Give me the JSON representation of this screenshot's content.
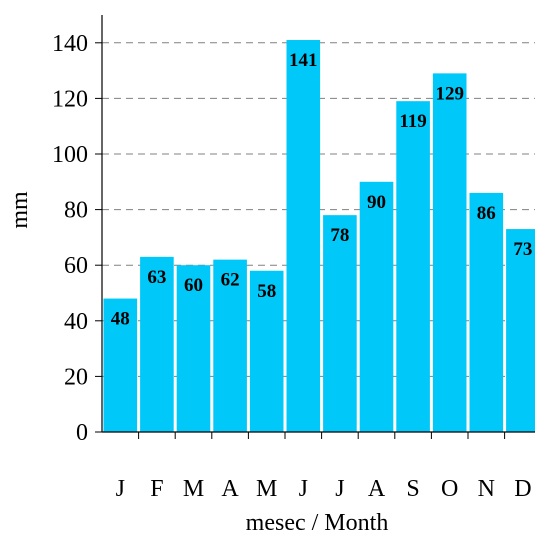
{
  "chart_data": {
    "type": "bar",
    "title": "",
    "xlabel": "mesec / Month",
    "ylabel": "mm",
    "categories": [
      "J",
      "F",
      "M",
      "A",
      "M",
      "J",
      "J",
      "A",
      "S",
      "O",
      "N",
      "D"
    ],
    "values": [
      48,
      63,
      60,
      62,
      58,
      141,
      78,
      90,
      119,
      129,
      86,
      73
    ],
    "ylim": [
      0,
      150
    ],
    "yticks": [
      0,
      20,
      40,
      60,
      80,
      100,
      120,
      140
    ],
    "grid": "horizontal dashed",
    "legend": "none",
    "colors": {
      "bar": "#00c8f8",
      "grid": "#808080",
      "axis": "#000000",
      "label": "#000000"
    }
  }
}
